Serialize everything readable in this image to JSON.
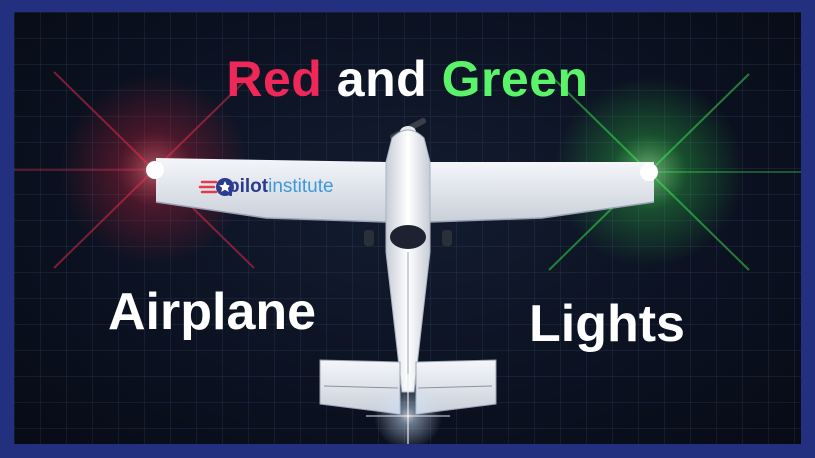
{
  "title": {
    "red": "Red",
    "and": "and",
    "green": "Green"
  },
  "caption_left": "Airplane",
  "caption_right": "Lights",
  "logo": {
    "part1": "pilot",
    "part2": "institute"
  },
  "colors": {
    "red_light": "#ff2440",
    "green_light": "#3cff50",
    "frame": "#22307f"
  }
}
